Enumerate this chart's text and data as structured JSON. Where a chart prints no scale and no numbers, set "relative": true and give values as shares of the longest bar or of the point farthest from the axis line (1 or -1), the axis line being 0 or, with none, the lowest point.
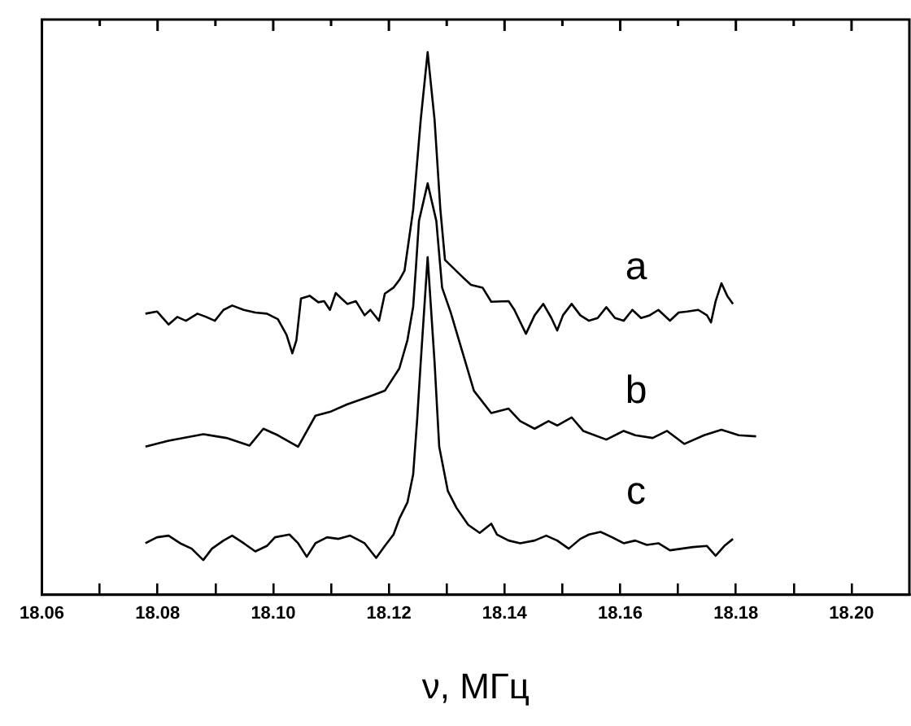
{
  "chart_data": {
    "type": "line",
    "xlabel": "ν, МГц",
    "relative": true,
    "tick_labels": "x",
    "marker": "none",
    "xlim": [
      18.06,
      18.21
    ],
    "xticks": [
      {
        "value": 18.06,
        "label": "18.06"
      },
      {
        "value": 18.07,
        "label": null
      },
      {
        "value": 18.08,
        "label": "18.08"
      },
      {
        "value": 18.09,
        "label": null
      },
      {
        "value": 18.1,
        "label": "18.10"
      },
      {
        "value": 18.11,
        "label": null
      },
      {
        "value": 18.12,
        "label": "18.12"
      },
      {
        "value": 18.13,
        "label": null
      },
      {
        "value": 18.14,
        "label": "18.14"
      },
      {
        "value": 18.15,
        "label": null
      },
      {
        "value": 18.16,
        "label": "18.16"
      },
      {
        "value": 18.17,
        "label": null
      },
      {
        "value": 18.18,
        "label": "18.18"
      },
      {
        "value": 18.19,
        "label": null
      },
      {
        "value": 18.2,
        "label": "18.20"
      }
    ],
    "series": [
      {
        "name": "a",
        "color": "#000000",
        "x": [
          18.0779,
          18.0799,
          18.0819,
          18.0834,
          18.0849,
          18.0869,
          18.0884,
          18.0899,
          18.0914,
          18.0929,
          18.0949,
          18.0969,
          18.0989,
          18.1008,
          18.1023,
          18.1033,
          18.104,
          18.1048,
          18.1063,
          18.1078,
          18.1088,
          18.1098,
          18.1108,
          18.1118,
          18.1128,
          18.1143,
          18.1158,
          18.1168,
          18.1183,
          18.1193,
          18.1208,
          18.1218,
          18.1227,
          18.1242,
          18.1255,
          18.1267,
          18.1279,
          18.1289,
          18.1297,
          18.1327,
          18.1342,
          18.1362,
          18.1377,
          18.1407,
          18.1417,
          18.1437,
          18.1452,
          18.1467,
          18.1481,
          18.1491,
          18.1501,
          18.1516,
          18.1531,
          18.1546,
          18.1561,
          18.1576,
          18.1591,
          18.1606,
          18.1621,
          18.1636,
          18.1651,
          18.1666,
          18.1686,
          18.1701,
          18.1716,
          18.1735,
          18.175,
          18.1757,
          18.1765,
          18.1775,
          18.1785,
          18.1795
        ],
        "values": [
          0.518,
          0.522,
          0.498,
          0.512,
          0.505,
          0.518,
          0.512,
          0.505,
          0.525,
          0.533,
          0.525,
          0.52,
          0.518,
          0.508,
          0.479,
          0.445,
          0.469,
          0.546,
          0.551,
          0.539,
          0.541,
          0.525,
          0.556,
          0.546,
          0.536,
          0.541,
          0.515,
          0.525,
          0.505,
          0.555,
          0.566,
          0.58,
          0.597,
          0.71,
          0.875,
          1,
          0.875,
          0.71,
          0.617,
          0.586,
          0.571,
          0.566,
          0.54,
          0.541,
          0.525,
          0.481,
          0.515,
          0.536,
          0.51,
          0.487,
          0.515,
          0.536,
          0.515,
          0.505,
          0.51,
          0.53,
          0.51,
          0.505,
          0.525,
          0.51,
          0.515,
          0.525,
          0.505,
          0.52,
          0.522,
          0.525,
          0.515,
          0.502,
          0.541,
          0.574,
          0.551,
          0.536
        ]
      },
      {
        "name": "b",
        "color": "#000000",
        "x": [
          18.0779,
          18.0819,
          18.0879,
          18.0919,
          18.0959,
          18.0983,
          18.1008,
          18.1043,
          18.1073,
          18.1098,
          18.1128,
          18.1168,
          18.1193,
          18.1218,
          18.1232,
          18.1242,
          18.1247,
          18.1252,
          18.1267,
          18.1282,
          18.1292,
          18.1307,
          18.1327,
          18.1347,
          18.1377,
          18.1407,
          18.1427,
          18.1452,
          18.1476,
          18.1491,
          18.1516,
          18.1536,
          18.1576,
          18.1606,
          18.1626,
          18.1656,
          18.1681,
          18.1711,
          18.1745,
          18.1775,
          18.1805,
          18.1835
        ],
        "values": [
          0.273,
          0.284,
          0.296,
          0.289,
          0.275,
          0.306,
          0.294,
          0.273,
          0.33,
          0.337,
          0.351,
          0.366,
          0.376,
          0.417,
          0.469,
          0.531,
          0.607,
          0.689,
          0.758,
          0.689,
          0.566,
          0.52,
          0.448,
          0.376,
          0.335,
          0.343,
          0.32,
          0.306,
          0.32,
          0.312,
          0.327,
          0.302,
          0.286,
          0.302,
          0.294,
          0.289,
          0.302,
          0.278,
          0.294,
          0.304,
          0.294,
          0.292
        ]
      },
      {
        "name": "c",
        "color": "#000000",
        "x": [
          18.0779,
          18.0799,
          18.0819,
          18.0839,
          18.0859,
          18.0879,
          18.0894,
          18.0914,
          18.0929,
          18.0949,
          18.0969,
          18.0989,
          18.1003,
          18.1028,
          18.1043,
          18.1058,
          18.1073,
          18.1093,
          18.1113,
          18.1133,
          18.1158,
          18.1178,
          18.1193,
          18.1208,
          18.1218,
          18.1232,
          18.1242,
          18.1249,
          18.1255,
          18.1267,
          18.1279,
          18.1287,
          18.1302,
          18.1317,
          18.1337,
          18.1357,
          18.1377,
          18.1387,
          18.1407,
          18.1427,
          18.1452,
          18.1472,
          18.1491,
          18.1511,
          18.1531,
          18.1546,
          18.1566,
          18.1586,
          18.1606,
          18.1626,
          18.1646,
          18.1666,
          18.1686,
          18.1706,
          18.1726,
          18.175,
          18.1765,
          18.178,
          18.1795
        ],
        "values": [
          0.095,
          0.106,
          0.109,
          0.095,
          0.085,
          0.064,
          0.085,
          0.1,
          0.109,
          0.095,
          0.08,
          0.09,
          0.106,
          0.111,
          0.095,
          0.07,
          0.095,
          0.106,
          0.103,
          0.109,
          0.095,
          0.068,
          0.09,
          0.111,
          0.14,
          0.17,
          0.222,
          0.325,
          0.428,
          0.622,
          0.428,
          0.273,
          0.191,
          0.16,
          0.129,
          0.114,
          0.131,
          0.111,
          0.1,
          0.095,
          0.1,
          0.109,
          0.1,
          0.085,
          0.103,
          0.111,
          0.116,
          0.106,
          0.095,
          0.1,
          0.092,
          0.095,
          0.082,
          0.085,
          0.088,
          0.09,
          0.072,
          0.09,
          0.103
        ]
      }
    ]
  }
}
